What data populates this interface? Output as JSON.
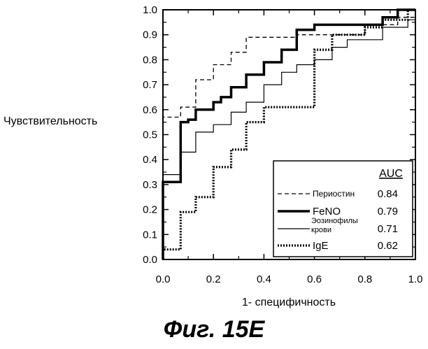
{
  "chart_data": {
    "type": "line",
    "title": "",
    "xlabel": "1- специфичность",
    "ylabel": "Чувствительность",
    "xlim": [
      0,
      1
    ],
    "ylim": [
      0,
      1
    ],
    "x_ticks": [
      "0.0",
      "0.2",
      "0.4",
      "0.6",
      "0.8",
      "1.0"
    ],
    "y_ticks": [
      "0.0",
      "0.1",
      "0.2",
      "0.3",
      "0.4",
      "0.5",
      "0.6",
      "0.7",
      "0.8",
      "0.9",
      "1.0"
    ],
    "grid": false,
    "legend": {
      "placement": "bottom-right",
      "header": "AUC"
    },
    "series": [
      {
        "name": "Периостин",
        "auc": "0.84",
        "style": "dashed",
        "color": "#000000",
        "points": [
          [
            0,
            0
          ],
          [
            0,
            0.57
          ],
          [
            0.07,
            0.57
          ],
          [
            0.07,
            0.61
          ],
          [
            0.13,
            0.61
          ],
          [
            0.13,
            0.72
          ],
          [
            0.2,
            0.72
          ],
          [
            0.2,
            0.78
          ],
          [
            0.27,
            0.78
          ],
          [
            0.27,
            0.83
          ],
          [
            0.33,
            0.83
          ],
          [
            0.33,
            0.89
          ],
          [
            0.53,
            0.89
          ],
          [
            0.53,
            0.9
          ],
          [
            0.8,
            0.9
          ],
          [
            0.8,
            0.94
          ],
          [
            0.93,
            0.94
          ],
          [
            0.93,
            0.97
          ],
          [
            1,
            0.97
          ]
        ]
      },
      {
        "name": "FeNO",
        "auc": "0.79",
        "style": "thick",
        "color": "#000000",
        "points": [
          [
            0,
            0
          ],
          [
            0,
            0.31
          ],
          [
            0.07,
            0.31
          ],
          [
            0.07,
            0.55
          ],
          [
            0.1,
            0.55
          ],
          [
            0.1,
            0.56
          ],
          [
            0.13,
            0.56
          ],
          [
            0.13,
            0.6
          ],
          [
            0.2,
            0.6
          ],
          [
            0.2,
            0.63
          ],
          [
            0.23,
            0.63
          ],
          [
            0.23,
            0.65
          ],
          [
            0.27,
            0.65
          ],
          [
            0.27,
            0.69
          ],
          [
            0.33,
            0.69
          ],
          [
            0.33,
            0.74
          ],
          [
            0.4,
            0.74
          ],
          [
            0.4,
            0.79
          ],
          [
            0.47,
            0.79
          ],
          [
            0.47,
            0.84
          ],
          [
            0.53,
            0.84
          ],
          [
            0.53,
            0.92
          ],
          [
            0.6,
            0.92
          ],
          [
            0.6,
            0.94
          ],
          [
            0.87,
            0.94
          ],
          [
            0.87,
            0.97
          ],
          [
            0.93,
            0.97
          ],
          [
            0.93,
            1.0
          ],
          [
            1,
            1.0
          ]
        ]
      },
      {
        "name": "Эозинофилы крови",
        "auc": "0.71",
        "style": "thin",
        "color": "#000000",
        "points": [
          [
            0,
            0
          ],
          [
            0,
            0.34
          ],
          [
            0.07,
            0.34
          ],
          [
            0.07,
            0.43
          ],
          [
            0.13,
            0.43
          ],
          [
            0.13,
            0.51
          ],
          [
            0.2,
            0.51
          ],
          [
            0.2,
            0.54
          ],
          [
            0.27,
            0.54
          ],
          [
            0.27,
            0.59
          ],
          [
            0.33,
            0.59
          ],
          [
            0.33,
            0.63
          ],
          [
            0.4,
            0.63
          ],
          [
            0.4,
            0.7
          ],
          [
            0.47,
            0.7
          ],
          [
            0.47,
            0.75
          ],
          [
            0.53,
            0.75
          ],
          [
            0.53,
            0.78
          ],
          [
            0.6,
            0.78
          ],
          [
            0.6,
            0.8
          ],
          [
            0.67,
            0.8
          ],
          [
            0.67,
            0.85
          ],
          [
            0.73,
            0.85
          ],
          [
            0.73,
            0.88
          ],
          [
            0.87,
            0.88
          ],
          [
            0.87,
            0.93
          ],
          [
            0.97,
            0.93
          ],
          [
            0.97,
            0.96
          ],
          [
            1,
            0.96
          ]
        ]
      },
      {
        "name": "IgE",
        "auc": "0.62",
        "style": "dotted",
        "color": "#000000",
        "points": [
          [
            0,
            0
          ],
          [
            0,
            0.04
          ],
          [
            0.07,
            0.04
          ],
          [
            0.07,
            0.19
          ],
          [
            0.13,
            0.19
          ],
          [
            0.13,
            0.25
          ],
          [
            0.2,
            0.25
          ],
          [
            0.2,
            0.37
          ],
          [
            0.27,
            0.37
          ],
          [
            0.27,
            0.44
          ],
          [
            0.33,
            0.44
          ],
          [
            0.33,
            0.55
          ],
          [
            0.4,
            0.55
          ],
          [
            0.4,
            0.61
          ],
          [
            0.6,
            0.61
          ],
          [
            0.6,
            0.84
          ],
          [
            0.67,
            0.84
          ],
          [
            0.67,
            0.9
          ],
          [
            0.8,
            0.9
          ],
          [
            0.8,
            0.93
          ],
          [
            0.87,
            0.93
          ],
          [
            0.87,
            0.96
          ],
          [
            0.97,
            0.96
          ],
          [
            0.97,
            1.0
          ],
          [
            1,
            1.0
          ]
        ]
      }
    ]
  },
  "figure": {
    "caption": "Фиг. 15E"
  }
}
